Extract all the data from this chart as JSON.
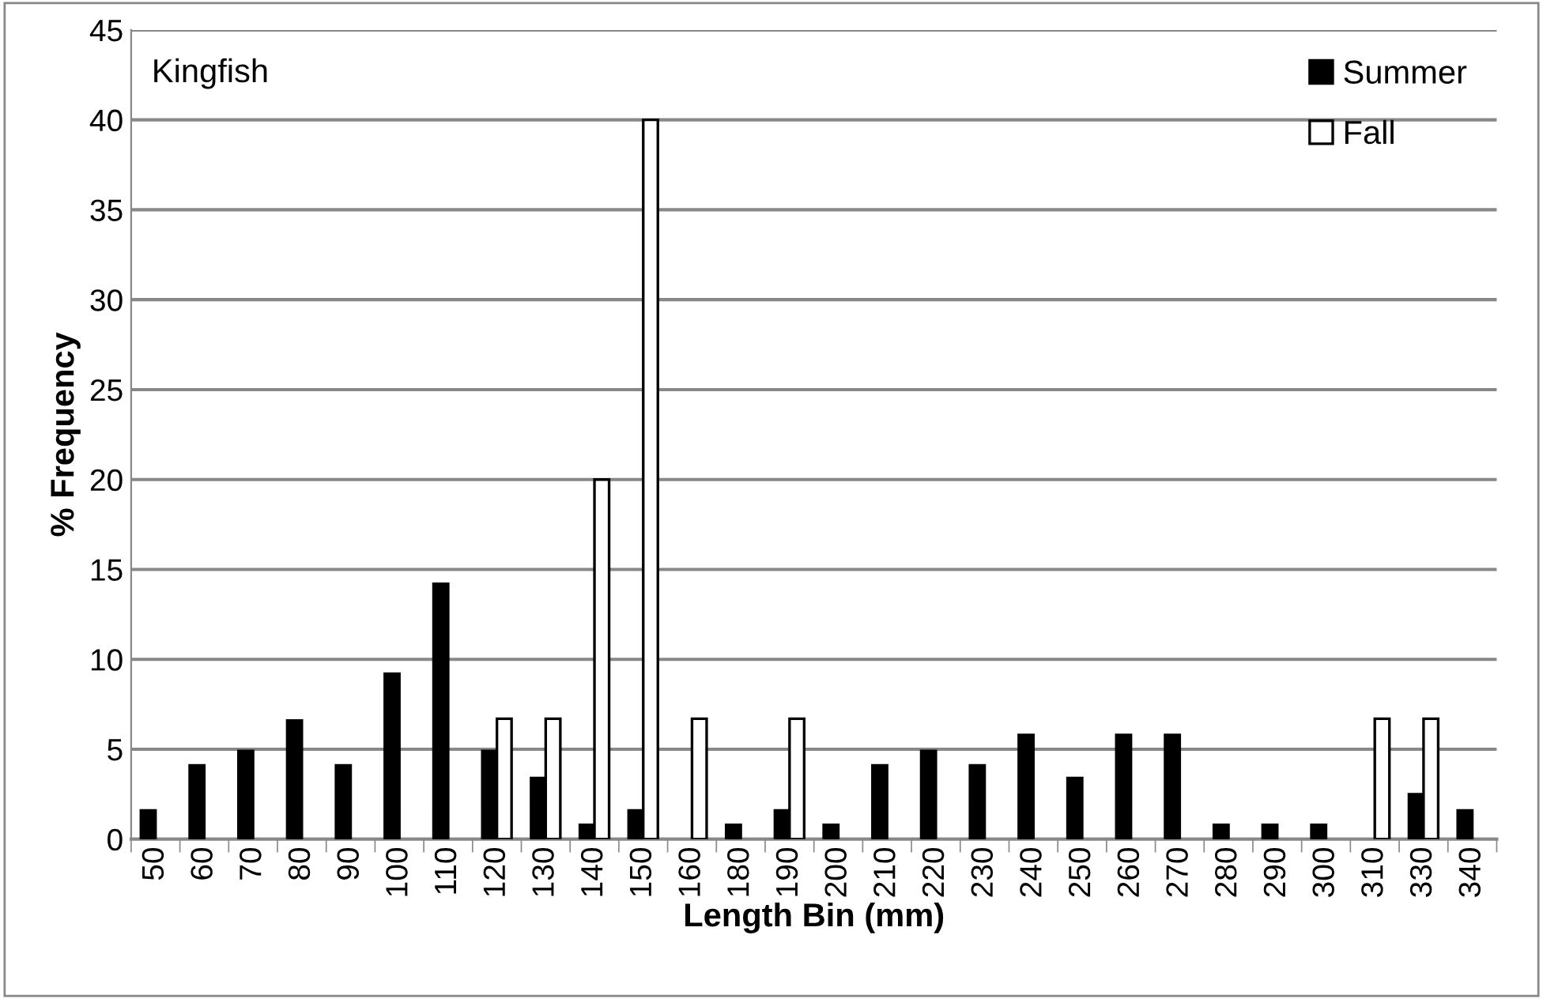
{
  "chart_data": {
    "type": "bar",
    "xlabel": "Length Bin (mm)",
    "ylabel": "% Frequency",
    "annotations": [
      "Kingfish"
    ],
    "categories": [
      "50",
      "60",
      "70",
      "80",
      "90",
      "100",
      "110",
      "120",
      "130",
      "140",
      "150",
      "160",
      "180",
      "190",
      "200",
      "210",
      "220",
      "230",
      "240",
      "250",
      "260",
      "270",
      "280",
      "290",
      "300",
      "310",
      "330",
      "340"
    ],
    "series": [
      {
        "name": "Summer",
        "color": "#000000",
        "values": [
          1.6,
          4.1,
          4.9,
          6.6,
          4.1,
          9.2,
          14.2,
          4.9,
          3.4,
          0.8,
          1.6,
          null,
          0.8,
          1.6,
          0.8,
          4.1,
          4.9,
          4.1,
          5.8,
          3.4,
          5.8,
          5.8,
          0.8,
          0.8,
          0.8,
          null,
          2.5,
          1.6
        ]
      },
      {
        "name": "Fall",
        "color": "#ffffff",
        "values": [
          null,
          null,
          null,
          null,
          null,
          null,
          null,
          6.7,
          6.7,
          20,
          40,
          6.7,
          null,
          6.7,
          null,
          null,
          null,
          null,
          null,
          null,
          null,
          null,
          null,
          null,
          null,
          6.7,
          6.7,
          null
        ]
      }
    ],
    "ylim": [
      0,
      45
    ],
    "yticks": [
      0,
      5,
      10,
      15,
      20,
      25,
      30,
      35,
      40,
      45
    ],
    "grid": "y",
    "legend": "top right"
  }
}
